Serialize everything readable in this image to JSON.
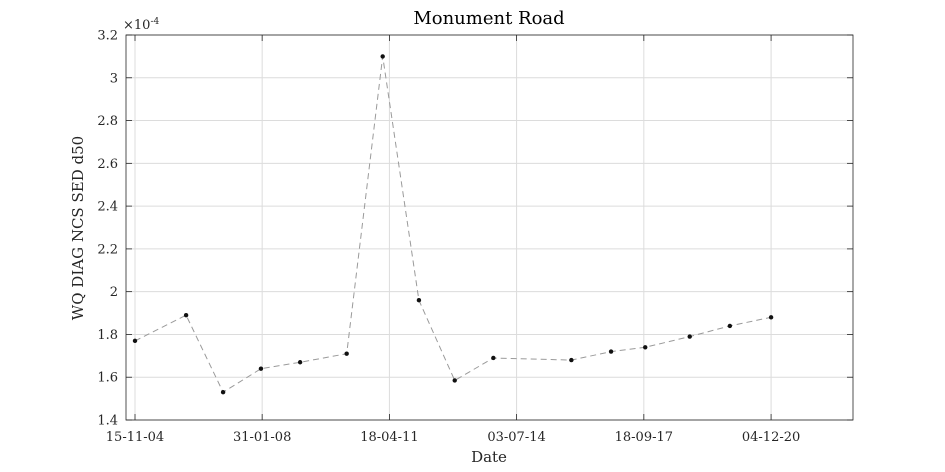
{
  "chart_data": {
    "type": "line",
    "title": "Monument Road",
    "xlabel": "Date",
    "ylabel": "WQ DIAG NCS SED d50",
    "y_exponent_label": "×10",
    "y_exponent_power": "-4",
    "y_scale_factor": 0.0001,
    "xlim": [
      "2004-08-24",
      "2022-12-29"
    ],
    "ylim": [
      1.4,
      3.2
    ],
    "grid": true,
    "x_ticks": [
      {
        "date": "2004-11-15",
        "label": "15-11-04"
      },
      {
        "date": "2008-01-31",
        "label": "31-01-08"
      },
      {
        "date": "2011-04-18",
        "label": "18-04-11"
      },
      {
        "date": "2014-07-03",
        "label": "03-07-14"
      },
      {
        "date": "2017-09-18",
        "label": "18-09-17"
      },
      {
        "date": "2020-12-04",
        "label": "04-12-20"
      }
    ],
    "y_ticks": [
      {
        "value": 1.4,
        "label": "1.4"
      },
      {
        "value": 1.6,
        "label": "1.6"
      },
      {
        "value": 1.8,
        "label": "1.8"
      },
      {
        "value": 2.0,
        "label": "2"
      },
      {
        "value": 2.2,
        "label": "2.2"
      },
      {
        "value": 2.4,
        "label": "2.4"
      },
      {
        "value": 2.6,
        "label": "2.6"
      },
      {
        "value": 2.8,
        "label": "2.8"
      },
      {
        "value": 3.0,
        "label": "3"
      },
      {
        "value": 3.2,
        "label": "3.2"
      }
    ],
    "series": [
      {
        "x": [
          "2004-11-15",
          "2006-03-01",
          "2007-02-05",
          "2008-01-20",
          "2009-01-15",
          "2010-03-20",
          "2011-02-15",
          "2012-01-15",
          "2012-12-10",
          "2013-12-01",
          "2015-11-20",
          "2016-11-20",
          "2017-10-01",
          "2018-11-15",
          "2019-11-20",
          "2020-12-04"
        ],
        "y": [
          1.77,
          1.89,
          1.53,
          1.64,
          1.67,
          1.71,
          3.1,
          1.96,
          1.585,
          1.69,
          1.68,
          1.72,
          1.74,
          1.79,
          1.84,
          1.88
        ],
        "color": "#9a9a9a",
        "marker_color": "#111111"
      }
    ]
  }
}
